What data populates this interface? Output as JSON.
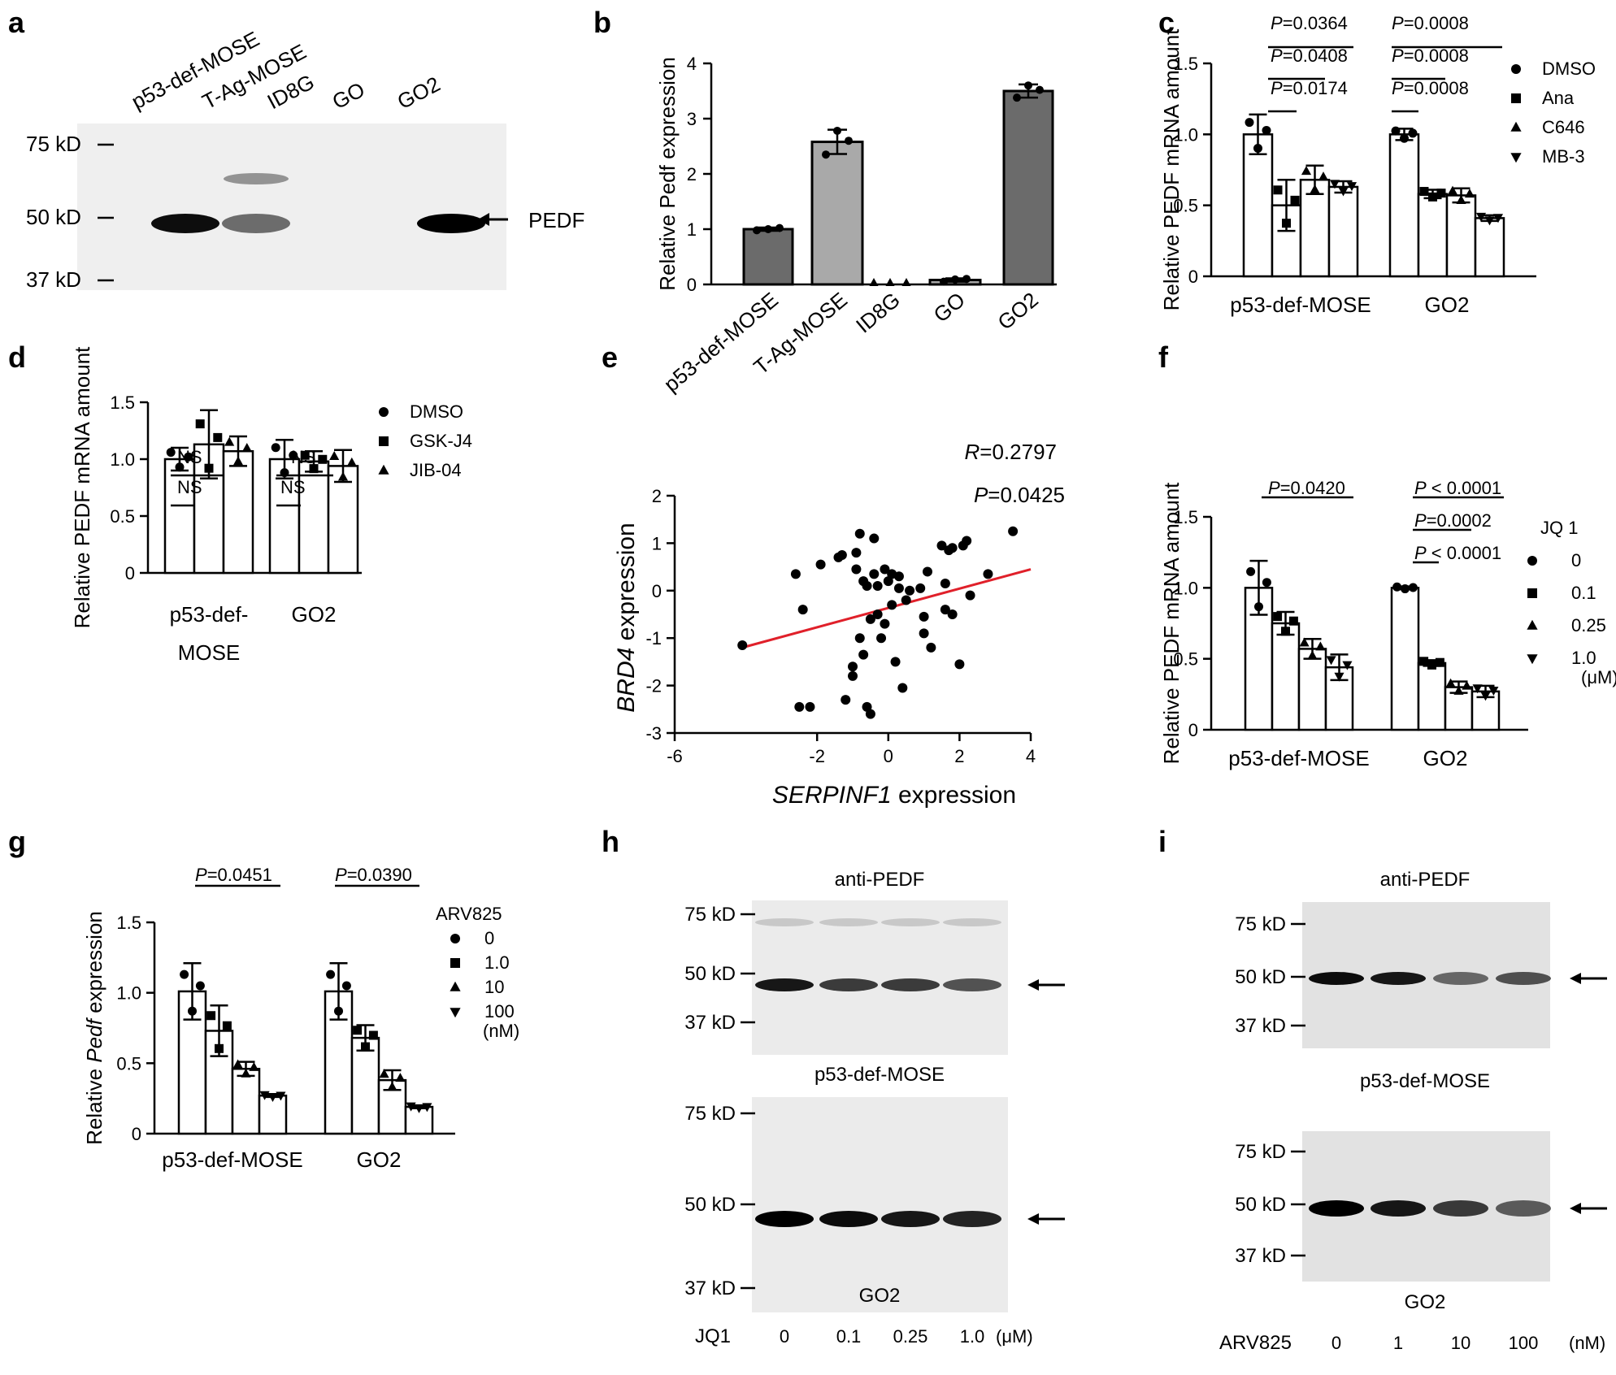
{
  "chart_data": [
    {
      "panel": "a",
      "type": "western_blot",
      "lanes": [
        "p53-def-MOSE",
        "T-Ag-MOSE",
        "ID8G",
        "GO",
        "GO2"
      ],
      "markers": [
        "75 kD",
        "50 kD",
        "37 kD"
      ],
      "band_label": "PEDF",
      "band_intensity": [
        0.95,
        0.55,
        0.0,
        0.0,
        1.0
      ]
    },
    {
      "panel": "b",
      "type": "bar",
      "categories": [
        "p53-def-MOSE",
        "T-Ag-MOSE",
        "ID8G",
        "GO",
        "GO2"
      ],
      "values": [
        1.0,
        2.58,
        0.0,
        0.08,
        3.5
      ],
      "errors": [
        0.03,
        0.22,
        0.0,
        0.03,
        0.12
      ],
      "points": [
        [
          0.98,
          1.0,
          1.02
        ],
        [
          2.35,
          2.78,
          2.6
        ],
        [
          0,
          0,
          0
        ],
        [
          0.05,
          0.09,
          0.1
        ],
        [
          3.38,
          3.6,
          3.52
        ]
      ],
      "bar_colors": [
        "#6b6b6b",
        "#a9a9a9",
        "#6b6b6b",
        "#a9a9a9",
        "#6b6b6b"
      ],
      "ylabel": "Relative Pedf expression",
      "yticks": [
        "0",
        "1",
        "2",
        "3",
        "4"
      ],
      "ylim": [
        0,
        4
      ]
    },
    {
      "panel": "c",
      "type": "bar",
      "groups": [
        "p53-def-MOSE",
        "GO2"
      ],
      "series": [
        {
          "name": "DMSO",
          "marker": "circle",
          "values": [
            1.0,
            1.0
          ],
          "errors": [
            0.14,
            0.04
          ]
        },
        {
          "name": "Ana",
          "marker": "square",
          "values": [
            0.5,
            0.58
          ],
          "errors": [
            0.18,
            0.03
          ]
        },
        {
          "name": "C646",
          "marker": "triangle",
          "values": [
            0.68,
            0.57
          ],
          "errors": [
            0.1,
            0.05
          ]
        },
        {
          "name": "MB-3",
          "marker": "triangle-down",
          "values": [
            0.63,
            0.41
          ],
          "errors": [
            0.04,
            0.02
          ]
        }
      ],
      "annotations": [
        "P=0.0364",
        "P=0.0408",
        "P=0.0174",
        "P=0.0008",
        "P=0.0008",
        "P=0.0008"
      ],
      "ylabel": "Relative PEDF mRNA amount",
      "yticks": [
        "0",
        "0.5",
        "1.0",
        "1.5"
      ],
      "ylim": [
        0,
        1.5
      ]
    },
    {
      "panel": "d",
      "type": "bar",
      "groups": [
        "p53-def-",
        "GO2"
      ],
      "group_label_second_line": "MOSE",
      "series": [
        {
          "name": "DMSO",
          "marker": "circle",
          "values": [
            1.0,
            1.0
          ],
          "errors": [
            0.1,
            0.17
          ]
        },
        {
          "name": "GSK-J4",
          "marker": "square",
          "values": [
            1.13,
            0.98
          ],
          "errors": [
            0.3,
            0.09
          ]
        },
        {
          "name": "JIB-04",
          "marker": "triangle",
          "values": [
            1.07,
            0.94
          ],
          "errors": [
            0.13,
            0.14
          ]
        }
      ],
      "annotations": [
        "NS",
        "NS",
        "NS",
        "NS"
      ],
      "ylabel": "Relative PEDF mRNA amount",
      "yticks": [
        "0",
        "0.5",
        "1.0",
        "1.5"
      ],
      "ylim": [
        0,
        1.5
      ]
    },
    {
      "panel": "e",
      "type": "scatter",
      "x": [
        -4.1,
        -2.6,
        -2.5,
        -2.4,
        -2.2,
        -1.9,
        -1.4,
        -1.3,
        -1.2,
        -1.0,
        -1.0,
        -0.9,
        -0.9,
        -0.8,
        -0.8,
        -0.7,
        -0.7,
        -0.6,
        -0.6,
        -0.5,
        -0.5,
        -0.4,
        -0.4,
        -0.3,
        -0.3,
        -0.2,
        -0.1,
        -0.1,
        0.0,
        0.1,
        0.1,
        0.2,
        0.3,
        0.3,
        0.4,
        0.5,
        0.6,
        0.9,
        1.0,
        1.0,
        1.1,
        1.2,
        1.5,
        1.6,
        1.6,
        1.7,
        1.8,
        1.8,
        2.0,
        2.1,
        2.2,
        2.3,
        2.8,
        3.5
      ],
      "y": [
        -1.15,
        0.35,
        -2.45,
        -0.4,
        -2.45,
        0.55,
        0.7,
        0.75,
        -2.3,
        -1.8,
        -1.6,
        0.8,
        0.45,
        1.2,
        -1.0,
        -1.35,
        0.2,
        0.1,
        -2.45,
        -2.6,
        -0.6,
        1.1,
        0.35,
        0.1,
        -0.5,
        -1.0,
        -0.7,
        0.45,
        0.2,
        0.35,
        -0.3,
        -1.5,
        0.3,
        0.05,
        -2.05,
        -0.2,
        0.0,
        0.05,
        -0.9,
        -0.55,
        0.4,
        -1.2,
        0.95,
        -0.4,
        0.15,
        0.85,
        0.9,
        -0.5,
        -1.55,
        0.95,
        1.05,
        -0.1,
        0.35,
        1.25
      ],
      "fit": {
        "x": [
          -4.1,
          4.0
        ],
        "y": [
          -1.2,
          0.45
        ],
        "color": "#e0202a"
      },
      "xlabel": "SERPINF1 expression",
      "xlabel_suffix": " expression",
      "xlabel_gene": "SERPINF1",
      "ylabel_gene": "BRD4",
      "ylabel_suffix": " expression",
      "xticks": [
        "-6",
        "-2",
        "0",
        "2",
        "4"
      ],
      "xtick_values": [
        -6,
        -2,
        0,
        2,
        4
      ],
      "yticks": [
        "-3",
        "-2",
        "-1",
        "0",
        "1",
        "2"
      ],
      "xlim": [
        -6,
        4
      ],
      "ylim": [
        -3,
        2
      ],
      "stats": {
        "r_label": "R",
        "r_value": "=0.2797",
        "p_label": "P",
        "p_value": "=0.0425"
      }
    },
    {
      "panel": "f",
      "type": "bar",
      "groups": [
        "p53-def-MOSE",
        "GO2"
      ],
      "legend_title": "JQ 1",
      "legend_unit": "(μM)",
      "series": [
        {
          "name": "0",
          "marker": "circle",
          "values": [
            1.0,
            1.0
          ],
          "errors": [
            0.19,
            0.01
          ]
        },
        {
          "name": "0.1",
          "marker": "square",
          "values": [
            0.75,
            0.47
          ],
          "errors": [
            0.08,
            0.02
          ]
        },
        {
          "name": "0.25",
          "marker": "triangle",
          "values": [
            0.57,
            0.3
          ],
          "errors": [
            0.07,
            0.04
          ]
        },
        {
          "name": "1.0",
          "marker": "triangle-down",
          "values": [
            0.44,
            0.27
          ],
          "errors": [
            0.09,
            0.04
          ]
        }
      ],
      "annotations": [
        "P=0.0420",
        "P < 0.0001",
        "P=0.0002",
        "P < 0.0001"
      ],
      "ylabel": "Relative PEDF mRNA amount",
      "yticks": [
        "0",
        "0.5",
        "1.0",
        "1.5"
      ],
      "ylim": [
        0,
        1.5
      ]
    },
    {
      "panel": "g",
      "type": "bar",
      "groups": [
        "p53-def-MOSE",
        "GO2"
      ],
      "legend_title": "ARV825",
      "legend_unit": "(nM)",
      "series": [
        {
          "name": "0",
          "marker": "circle",
          "values": [
            1.01,
            1.01
          ],
          "errors": [
            0.2,
            0.2
          ]
        },
        {
          "name": "1.0",
          "marker": "square",
          "values": [
            0.73,
            0.68
          ],
          "errors": [
            0.18,
            0.09
          ]
        },
        {
          "name": "10",
          "marker": "triangle",
          "values": [
            0.46,
            0.38
          ],
          "errors": [
            0.05,
            0.07
          ]
        },
        {
          "name": "100",
          "marker": "triangle-down",
          "values": [
            0.27,
            0.19
          ],
          "errors": [
            0.01,
            0.01
          ]
        }
      ],
      "annotations": [
        "P=0.0451",
        "P=0.0390"
      ],
      "ylabel": "Relative Pedf expression",
      "ylabel_prefix": "Relative ",
      "ylabel_gene": "Pedf",
      "ylabel_suffix": " expression",
      "yticks": [
        "0",
        "0.5",
        "1.0",
        "1.5"
      ],
      "ylim": [
        0,
        1.5
      ]
    },
    {
      "panel": "h",
      "type": "western_blot",
      "top_title": "anti-PEDF",
      "bottom_title": "p53-def-MOSE",
      "cell_line": "GO2",
      "treatment": "JQ1",
      "doses": [
        "0",
        "0.1",
        "0.25",
        "1.0"
      ],
      "unit": "(μM)",
      "markers": [
        "75 kD",
        "50 kD",
        "37 kD"
      ],
      "top_band_intensity": [
        0.9,
        0.75,
        0.75,
        0.65
      ],
      "bottom_band_intensity": [
        1.0,
        0.95,
        0.9,
        0.85
      ]
    },
    {
      "panel": "i",
      "type": "western_blot",
      "top_title": "anti-PEDF",
      "bottom_title": "p53-def-MOSE",
      "cell_line": "GO2",
      "treatment": "ARV825",
      "doses": [
        "0",
        "1",
        "10",
        "100"
      ],
      "unit": "(nM)",
      "markers": [
        "75 kD",
        "50 kD",
        "37 kD"
      ],
      "top_band_intensity": [
        0.95,
        0.9,
        0.55,
        0.65
      ],
      "bottom_band_intensity": [
        1.0,
        0.9,
        0.75,
        0.6
      ]
    }
  ],
  "panel_letters": [
    "a",
    "b",
    "c",
    "d",
    "e",
    "f",
    "g",
    "h",
    "i"
  ]
}
